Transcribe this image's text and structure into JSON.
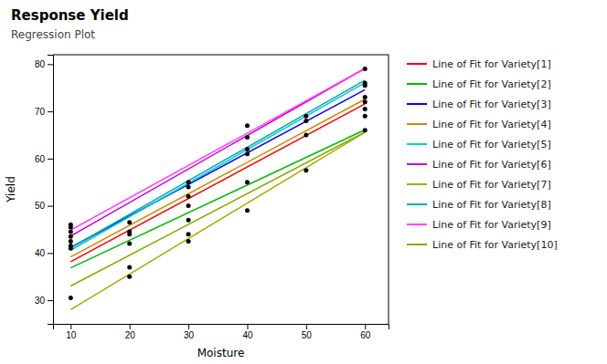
{
  "chart_data": {
    "type": "scatter",
    "title": "Response Yield",
    "subtitle": "Regression Plot",
    "x_label": "Moisture",
    "y_label": "Yield",
    "xlim": [
      7,
      64
    ],
    "ylim": [
      25,
      82
    ],
    "xticks": [
      10,
      20,
      30,
      40,
      50,
      60
    ],
    "yticks": [
      30,
      40,
      50,
      60,
      70,
      80
    ],
    "grid": false,
    "legend": "right",
    "series": [
      {
        "name": "Line of Fit for Variety[1]",
        "type": "line",
        "color": "#ff0000",
        "x": [
          10,
          60
        ],
        "values": [
          38.18,
          71.58
        ]
      },
      {
        "name": "Line of Fit for Variety[2]",
        "type": "line",
        "color": "#00bb00",
        "x": [
          10,
          60
        ],
        "values": [
          36.85,
          66.1
        ]
      },
      {
        "name": "Line of Fit for Variety[3]",
        "type": "line",
        "color": "#0000ff",
        "x": [
          10,
          60
        ],
        "values": [
          41.18,
          74.58
        ]
      },
      {
        "name": "Line of Fit for Variety[4]",
        "type": "line",
        "color": "#cc8800",
        "x": [
          10,
          60
        ],
        "values": [
          39.18,
          72.58
        ]
      },
      {
        "name": "Line of Fit for Variety[5]",
        "type": "line",
        "color": "#00cccc",
        "x": [
          10,
          60
        ],
        "values": [
          40.6,
          76.1
        ]
      },
      {
        "name": "Line of Fit for Variety[6]",
        "type": "line",
        "color": "#cc00cc",
        "x": [
          10,
          60
        ],
        "values": [
          43.6,
          79.1
        ]
      },
      {
        "name": "Line of Fit for Variety[7]",
        "type": "line",
        "color": "#aaaa00",
        "x": [
          10,
          60
        ],
        "values": [
          28.02,
          65.62
        ]
      },
      {
        "name": "Line of Fit for Variety[8]",
        "type": "line",
        "color": "#00aaaa",
        "x": [
          10,
          60
        ],
        "values": [
          41.1,
          76.6
        ]
      },
      {
        "name": "Line of Fit for Variety[9]",
        "type": "line",
        "color": "#ff44ff",
        "x": [
          10,
          60
        ],
        "values": [
          44.85,
          79.1
        ]
      },
      {
        "name": "Line of Fit for Variety[10]",
        "type": "line",
        "color": "#88aa00",
        "x": [
          10,
          60
        ],
        "values": [
          33.02,
          65.62
        ]
      },
      {
        "type": "scatter",
        "color": "#000000",
        "x": [
          10,
          10,
          10,
          10,
          10,
          10,
          10,
          10,
          20,
          20,
          20,
          20,
          20,
          20,
          30,
          30,
          30,
          30,
          30,
          30,
          30,
          40,
          40,
          40,
          40,
          40,
          40,
          50,
          50,
          50,
          50,
          60,
          60,
          60,
          60,
          60,
          60,
          60,
          60
        ],
        "values": [
          30.5,
          41.0,
          41.5,
          42.5,
          43.5,
          44.5,
          45.5,
          46.0,
          35.0,
          37.0,
          42.0,
          44.0,
          44.5,
          46.5,
          42.5,
          44.0,
          47.0,
          50.0,
          52.0,
          54.0,
          55.0,
          49.0,
          55.0,
          61.0,
          62.0,
          64.5,
          67.0,
          57.5,
          65.0,
          68.0,
          69.0,
          66.0,
          69.0,
          70.5,
          72.0,
          73.0,
          75.5,
          76.0,
          79.0
        ]
      }
    ]
  }
}
